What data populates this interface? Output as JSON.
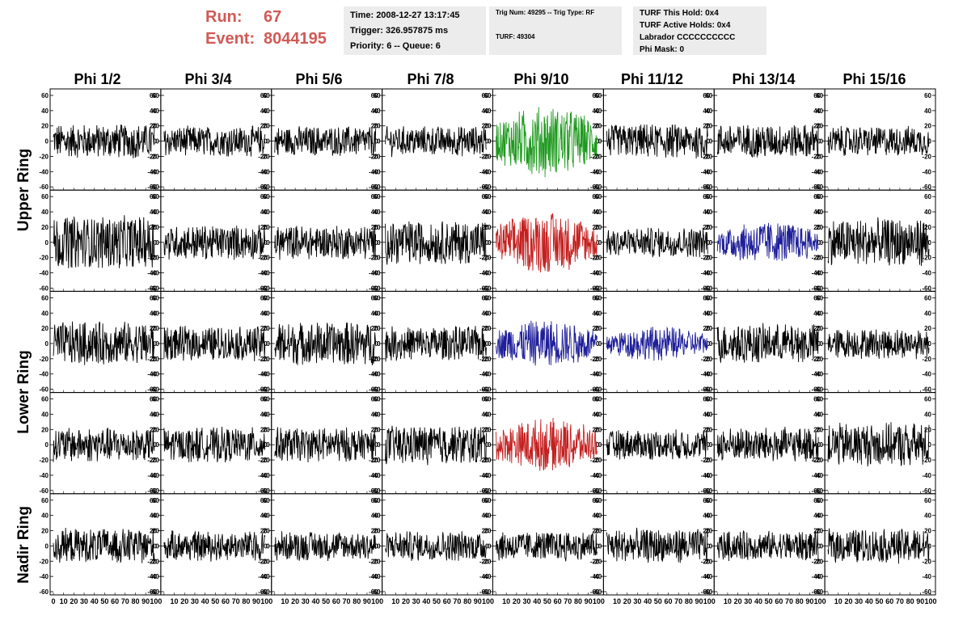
{
  "header": {
    "run_label": "Run:",
    "run_value": "67",
    "event_label": "Event:",
    "event_value": "8044195",
    "time": "Time: 2008-12-27 13:17:45",
    "trigger": "Trigger: 326.957875 ms",
    "priority": "Priority: 6 -- Queue: 6",
    "trig_num": "Trig Num: 49295 -- Trig Type: RF",
    "turf": "TURF: 49304",
    "turf_hold": "TURF This Hold: 0x4",
    "turf_active": "TURF Active Holds: 0x4",
    "labrador": "Labrador CCCCCCCCCC",
    "phi_mask": "Phi Mask: 0"
  },
  "columns": [
    "Phi 1/2",
    "Phi 3/4",
    "Phi 5/6",
    "Phi 7/8",
    "Phi 9/10",
    "Phi 11/12",
    "Phi 13/14",
    "Phi 15/16"
  ],
  "ring_labels": [
    "Upper Ring",
    "Lower Ring",
    "Nadir Ring"
  ],
  "chart_data": {
    "type": "line",
    "grid": "8 columns x 5 rows of waveform panels",
    "ylim": [
      -60,
      60
    ],
    "xlim": [
      0,
      100
    ],
    "y_ticks": [
      "60",
      "40",
      "20",
      "0",
      "-20",
      "-40",
      "-60"
    ],
    "x_ticks": [
      "0",
      "10",
      "20",
      "30",
      "40",
      "50",
      "60",
      "70",
      "80",
      "90",
      "100"
    ],
    "colors": {
      "default": "#000000",
      "green": "#1f9a1f",
      "red": "#c42020",
      "blue": "#1f1f9a"
    },
    "highlighted": [
      {
        "row": 0,
        "col": 4,
        "color": "green"
      },
      {
        "row": 1,
        "col": 4,
        "color": "red"
      },
      {
        "row": 1,
        "col": 6,
        "color": "blue"
      },
      {
        "row": 2,
        "col": 4,
        "color": "blue"
      },
      {
        "row": 2,
        "col": 5,
        "color": "blue"
      },
      {
        "row": 3,
        "col": 4,
        "color": "red"
      }
    ],
    "amplitude_scale": [
      [
        0.35,
        0.3,
        0.3,
        0.3,
        0.75,
        0.35,
        0.35,
        0.3
      ],
      [
        0.55,
        0.35,
        0.35,
        0.45,
        0.65,
        0.3,
        0.45,
        0.5
      ],
      [
        0.45,
        0.35,
        0.45,
        0.35,
        0.5,
        0.35,
        0.4,
        0.3
      ],
      [
        0.35,
        0.35,
        0.35,
        0.4,
        0.55,
        0.3,
        0.35,
        0.45
      ],
      [
        0.35,
        0.3,
        0.3,
        0.3,
        0.3,
        0.35,
        0.3,
        0.35
      ]
    ]
  }
}
